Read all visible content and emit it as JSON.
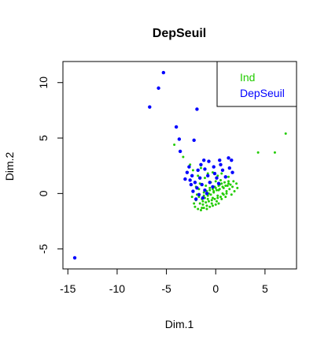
{
  "chart_data": {
    "type": "scatter",
    "title": "DepSeuil",
    "xlabel": "Dim.1",
    "ylabel": "Dim.2",
    "xlim": [
      -15.5,
      8.2
    ],
    "ylim": [
      -6.8,
      11.9
    ],
    "x_ticks": [
      -15,
      -10,
      -5,
      0,
      5
    ],
    "y_ticks": [
      -5,
      0,
      5,
      10
    ],
    "grid": false,
    "legend_position": "top-right",
    "series": [
      {
        "name": "Ind",
        "color": "#22CC00",
        "marker_size": "small",
        "points": [
          [
            7.1,
            5.4
          ],
          [
            6.0,
            3.7
          ],
          [
            4.3,
            3.7
          ],
          [
            -4.2,
            4.4
          ],
          [
            -3.3,
            3.3
          ],
          [
            -2.6,
            2.6
          ],
          [
            -2.3,
            2.1
          ],
          [
            -1.8,
            1.6
          ],
          [
            -1.5,
            2.3
          ],
          [
            -1.1,
            1.4
          ],
          [
            -0.8,
            1.8
          ],
          [
            -0.3,
            1.9
          ],
          [
            0.2,
            1.6
          ],
          [
            0.6,
            1.8
          ],
          [
            1.3,
            1.5
          ],
          [
            1.8,
            1.1
          ],
          [
            2.1,
            0.9
          ],
          [
            2.2,
            0.5
          ],
          [
            1.9,
            0.2
          ],
          [
            1.6,
            -0.1
          ],
          [
            -2.1,
            -1.2
          ],
          [
            -2.0,
            -0.6
          ],
          [
            -1.9,
            -0.1
          ],
          [
            -1.7,
            0.4
          ],
          [
            -1.6,
            0.9
          ],
          [
            -1.4,
            -1.3
          ],
          [
            -1.3,
            -0.7
          ],
          [
            -1.2,
            -0.2
          ],
          [
            -1.1,
            0.3
          ],
          [
            -1.0,
            0.7
          ],
          [
            -0.9,
            -1.1
          ],
          [
            -0.8,
            -0.5
          ],
          [
            -0.7,
            0.0
          ],
          [
            -0.6,
            0.5
          ],
          [
            -0.5,
            1.0
          ],
          [
            -0.4,
            -0.9
          ],
          [
            -0.3,
            -0.4
          ],
          [
            -0.2,
            0.1
          ],
          [
            -0.1,
            0.6
          ],
          [
            0.0,
            1.1
          ],
          [
            0.1,
            -0.7
          ],
          [
            0.2,
            -0.2
          ],
          [
            0.3,
            0.3
          ],
          [
            0.4,
            0.8
          ],
          [
            0.5,
            1.2
          ],
          [
            0.6,
            -0.5
          ],
          [
            0.7,
            0.0
          ],
          [
            0.8,
            0.5
          ],
          [
            0.9,
            1.0
          ],
          [
            1.0,
            -0.3
          ],
          [
            1.1,
            0.2
          ],
          [
            1.2,
            0.7
          ],
          [
            1.3,
            1.1
          ],
          [
            1.4,
            0.4
          ],
          [
            1.5,
            0.8
          ],
          [
            -1.8,
            -1.4
          ],
          [
            -1.5,
            -1.5
          ],
          [
            -1.2,
            -1.3
          ],
          [
            -0.9,
            -1.4
          ],
          [
            -0.6,
            -1.2
          ],
          [
            -0.3,
            -1.1
          ],
          [
            0.0,
            -1.0
          ],
          [
            0.3,
            -0.9
          ],
          [
            -1.6,
            -0.9
          ],
          [
            -1.3,
            -1.0
          ],
          [
            -1.0,
            -0.8
          ],
          [
            -0.7,
            -0.7
          ],
          [
            -0.4,
            -0.6
          ],
          [
            -0.1,
            -0.5
          ],
          [
            0.2,
            -0.4
          ],
          [
            0.5,
            -0.3
          ],
          [
            0.8,
            -0.1
          ],
          [
            1.1,
            0.0
          ],
          [
            -1.4,
            -0.5
          ],
          [
            -1.1,
            -0.4
          ],
          [
            -0.8,
            -0.2
          ],
          [
            -0.5,
            -0.1
          ],
          [
            -0.2,
            0.2
          ],
          [
            0.1,
            0.3
          ],
          [
            0.4,
            0.4
          ],
          [
            0.7,
            0.6
          ],
          [
            1.0,
            0.7
          ],
          [
            1.3,
            0.9
          ],
          [
            -1.2,
            0.1
          ],
          [
            -0.9,
            0.2
          ],
          [
            -0.6,
            0.3
          ],
          [
            -0.3,
            0.4
          ],
          [
            0.0,
            0.5
          ],
          [
            0.3,
            0.7
          ],
          [
            0.6,
            0.9
          ],
          [
            -1.7,
            -0.3
          ],
          [
            -2.2,
            -0.9
          ],
          [
            -2.4,
            -0.3
          ],
          [
            -2.0,
            0.6
          ],
          [
            1.7,
            0.6
          ]
        ]
      },
      {
        "name": "DepSeuil",
        "color": "#0000FF",
        "marker_size": "large",
        "points": [
          [
            -5.3,
            10.9
          ],
          [
            -5.8,
            9.5
          ],
          [
            -6.7,
            7.8
          ],
          [
            -1.9,
            7.6
          ],
          [
            -2.2,
            4.8
          ],
          [
            -4.0,
            6.0
          ],
          [
            -3.7,
            4.9
          ],
          [
            -3.6,
            3.8
          ],
          [
            -14.3,
            -5.8
          ],
          [
            -1.2,
            3.0
          ],
          [
            -0.7,
            2.9
          ],
          [
            0.4,
            3.0
          ],
          [
            1.3,
            3.2
          ],
          [
            1.6,
            3.0
          ],
          [
            -2.7,
            2.4
          ],
          [
            -1.8,
            2.1
          ],
          [
            -1.1,
            2.2
          ],
          [
            -0.2,
            2.4
          ],
          [
            0.7,
            2.1
          ],
          [
            1.4,
            2.3
          ],
          [
            -2.4,
            1.6
          ],
          [
            -1.6,
            1.4
          ],
          [
            -0.8,
            1.6
          ],
          [
            0.1,
            1.4
          ],
          [
            1.0,
            1.5
          ],
          [
            -2.1,
            1.0
          ],
          [
            -1.4,
            0.8
          ],
          [
            -0.6,
            1.0
          ],
          [
            0.3,
            0.9
          ],
          [
            -1.9,
            0.5
          ],
          [
            -1.1,
            0.3
          ],
          [
            -0.3,
            0.6
          ],
          [
            -2.3,
            0.2
          ],
          [
            -1.7,
            -0.1
          ],
          [
            -0.9,
            0.0
          ],
          [
            -2.0,
            -0.5
          ],
          [
            -1.3,
            -0.4
          ],
          [
            -2.5,
            0.8
          ],
          [
            -2.6,
            1.2
          ],
          [
            -0.1,
            1.8
          ],
          [
            0.5,
            2.6
          ],
          [
            -1.5,
            2.6
          ],
          [
            -2.9,
            1.9
          ],
          [
            -3.1,
            1.3
          ],
          [
            1.7,
            1.9
          ]
        ]
      }
    ]
  }
}
